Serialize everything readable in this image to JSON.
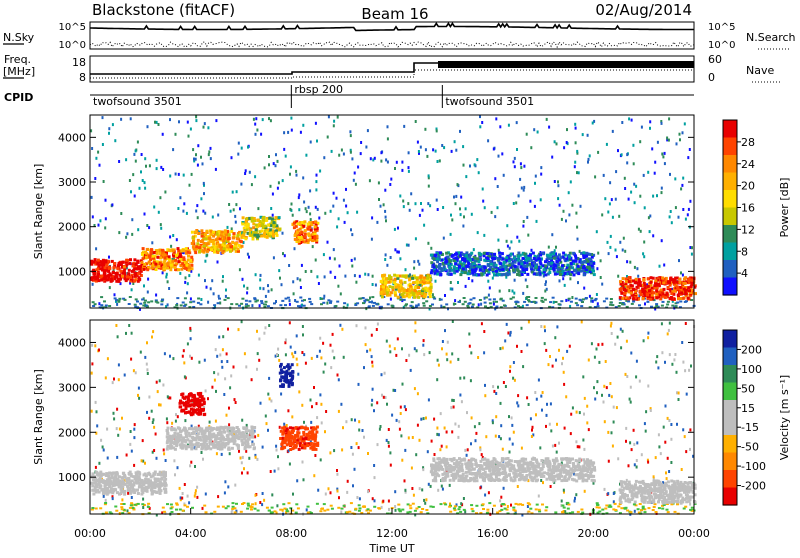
{
  "header": {
    "station": "Blackstone (fitACF)",
    "beam": "Beam 16",
    "date": "02/Aug/2014"
  },
  "top_panels": {
    "nsky_label": "N.Sky",
    "nsearch_label": "N.Search",
    "freq_label_1": "Freq.",
    "freq_label_2": "[MHz]",
    "nave_label": "Nave",
    "cpid_label": "CPID",
    "noise_left_ticks": [
      "10^5",
      "10^0"
    ],
    "noise_right_ticks": [
      "10^5",
      "10^0"
    ],
    "freq_ticks": [
      "18",
      "8"
    ],
    "nave_ticks": [
      "60",
      "0"
    ]
  },
  "cpid_segments": [
    {
      "label": "twofsound 3501",
      "start_hour": 0
    },
    {
      "label": "rbsp 200",
      "start_hour": 8
    },
    {
      "label": "twofsound 3501",
      "start_hour": 14
    }
  ],
  "chart_data": [
    {
      "type": "heatmap",
      "parameter": "Power",
      "ylabel": "Slant Range [km]",
      "xlabel": "Time UT",
      "ylim": [
        180,
        4500
      ],
      "xlim": [
        0,
        24
      ],
      "y_ticks": [
        "1000",
        "2000",
        "3000",
        "4000"
      ],
      "x_ticks": [
        "00:00",
        "04:00",
        "08:00",
        "12:00",
        "16:00",
        "20:00",
        "00:00"
      ],
      "colorbar": {
        "label": "Power [dB]",
        "ticks": [
          "28",
          "24",
          "20",
          "16",
          "12",
          "8",
          "4"
        ],
        "colors": [
          "#e80000",
          "#ff4400",
          "#ff8800",
          "#ffb000",
          "#ffdd00",
          "#c8c800",
          "#2e8b57",
          "#00a0a0",
          "#2060c0",
          "#1010ff"
        ]
      },
      "bands": [
        {
          "start_hour": 0.0,
          "end_hour": 2.0,
          "range_km": 1050,
          "value": 28
        },
        {
          "start_hour": 2.0,
          "end_hour": 4.0,
          "range_km": 1300,
          "value": 22
        },
        {
          "start_hour": 4.0,
          "end_hour": 6.0,
          "range_km": 1700,
          "value": 20
        },
        {
          "start_hour": 6.0,
          "end_hour": 7.5,
          "range_km": 2000,
          "value": 16
        },
        {
          "start_hour": 8.0,
          "end_hour": 9.0,
          "range_km": 1900,
          "value": 22
        },
        {
          "start_hour": 11.5,
          "end_hour": 13.5,
          "range_km": 700,
          "value": 18
        },
        {
          "start_hour": 13.5,
          "end_hour": 20.0,
          "range_km": 1200,
          "value": 8
        },
        {
          "start_hour": 21.0,
          "end_hour": 24.0,
          "range_km": 650,
          "value": 26
        }
      ]
    },
    {
      "type": "heatmap",
      "parameter": "Velocity",
      "ylabel": "Slant Range [km]",
      "xlabel": "Time UT",
      "ylim": [
        180,
        4500
      ],
      "xlim": [
        0,
        24
      ],
      "y_ticks": [
        "1000",
        "2000",
        "3000",
        "4000"
      ],
      "x_ticks": [
        "00:00",
        "04:00",
        "08:00",
        "12:00",
        "16:00",
        "20:00",
        "00:00"
      ],
      "colorbar": {
        "label": "Velocity [m s⁻¹]",
        "ticks": [
          "200",
          "100",
          "50",
          "15",
          "-15",
          "-50",
          "-100",
          "-200"
        ],
        "colors": [
          "#1020a0",
          "#2060c0",
          "#2e8b57",
          "#40c040",
          "#bebebe",
          "#bebebe",
          "#ffb000",
          "#ff8800",
          "#ff4400",
          "#e80000"
        ]
      },
      "bands": [
        {
          "start_hour": 0.0,
          "end_hour": 3.0,
          "range_km": 900,
          "value": 0
        },
        {
          "start_hour": 3.0,
          "end_hour": 6.5,
          "range_km": 1900,
          "value": 0
        },
        {
          "start_hour": 3.5,
          "end_hour": 4.5,
          "range_km": 2650,
          "value": -200
        },
        {
          "start_hour": 7.5,
          "end_hour": 9.0,
          "range_km": 1900,
          "value": -150
        },
        {
          "start_hour": 7.5,
          "end_hour": 8.0,
          "range_km": 3300,
          "value": 200
        },
        {
          "start_hour": 13.5,
          "end_hour": 20.0,
          "range_km": 1200,
          "value": 0
        },
        {
          "start_hour": 21.0,
          "end_hour": 24.0,
          "range_km": 700,
          "value": 0
        }
      ]
    }
  ]
}
